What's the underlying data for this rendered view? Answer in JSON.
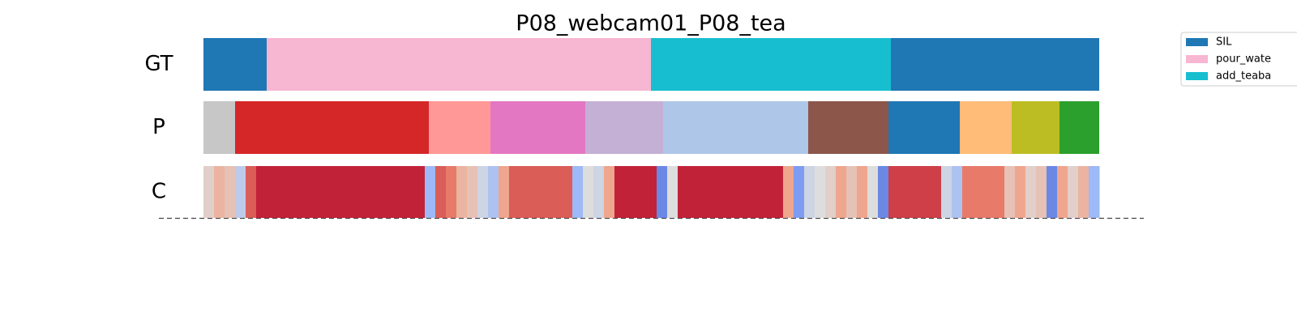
{
  "chart_data": {
    "type": "segmentation",
    "title": "P08_webcam01_P08_tea",
    "xlim": [
      0,
      1105
    ],
    "legend": [
      {
        "name": "SIL",
        "color": "#1f77b4"
      },
      {
        "name": "pour_wate",
        "color": "#f7b6d2"
      },
      {
        "name": "add_teaba",
        "color": "#17becf"
      }
    ],
    "rows": [
      {
        "label": "GT",
        "segments": [
          {
            "start": 0,
            "end": 78,
            "color": "#1f77b4"
          },
          {
            "start": 78,
            "end": 552,
            "color": "#f7b6d2"
          },
          {
            "start": 552,
            "end": 848,
            "color": "#17becf"
          },
          {
            "start": 848,
            "end": 1105,
            "color": "#1f77b4"
          }
        ]
      },
      {
        "label": "P",
        "segments": [
          {
            "start": 0,
            "end": 39,
            "color": "#c7c7c7"
          },
          {
            "start": 39,
            "end": 278,
            "color": "#d62728"
          },
          {
            "start": 278,
            "end": 354,
            "color": "#ff9896"
          },
          {
            "start": 354,
            "end": 471,
            "color": "#e377c2"
          },
          {
            "start": 471,
            "end": 567,
            "color": "#c5b0d5"
          },
          {
            "start": 567,
            "end": 746,
            "color": "#aec7e8"
          },
          {
            "start": 746,
            "end": 845,
            "color": "#8c564b"
          },
          {
            "start": 845,
            "end": 933,
            "color": "#1f77b4"
          },
          {
            "start": 933,
            "end": 997,
            "color": "#ffbb78"
          },
          {
            "start": 997,
            "end": 1056,
            "color": "#bcbd22"
          },
          {
            "start": 1056,
            "end": 1105,
            "color": "#2ca02c"
          }
        ]
      }
    ],
    "confidence": {
      "label": "C",
      "clim": [
        0,
        1
      ],
      "values": [
        0.55,
        0.65,
        0.6,
        0.4,
        0.85,
        0.95,
        0.95,
        0.95,
        0.95,
        0.95,
        0.95,
        0.95,
        0.95,
        0.95,
        0.95,
        0.95,
        0.95,
        0.95,
        0.95,
        0.95,
        0.95,
        0.3,
        0.85,
        0.8,
        0.65,
        0.6,
        0.45,
        0.35,
        0.7,
        0.85,
        0.85,
        0.85,
        0.85,
        0.85,
        0.85,
        0.3,
        0.5,
        0.45,
        0.7,
        0.95,
        0.95,
        0.95,
        0.95,
        0.15,
        0.5,
        0.95,
        0.95,
        0.95,
        0.95,
        0.95,
        0.95,
        0.95,
        0.95,
        0.95,
        0.95,
        0.7,
        0.2,
        0.45,
        0.5,
        0.55,
        0.7,
        0.6,
        0.7,
        0.5,
        0.15,
        0.9,
        0.9,
        0.9,
        0.9,
        0.9,
        0.45,
        0.35,
        0.8,
        0.8,
        0.8,
        0.8,
        0.6,
        0.7,
        0.55,
        0.6,
        0.15,
        0.7,
        0.55,
        0.65,
        0.3
      ]
    }
  }
}
